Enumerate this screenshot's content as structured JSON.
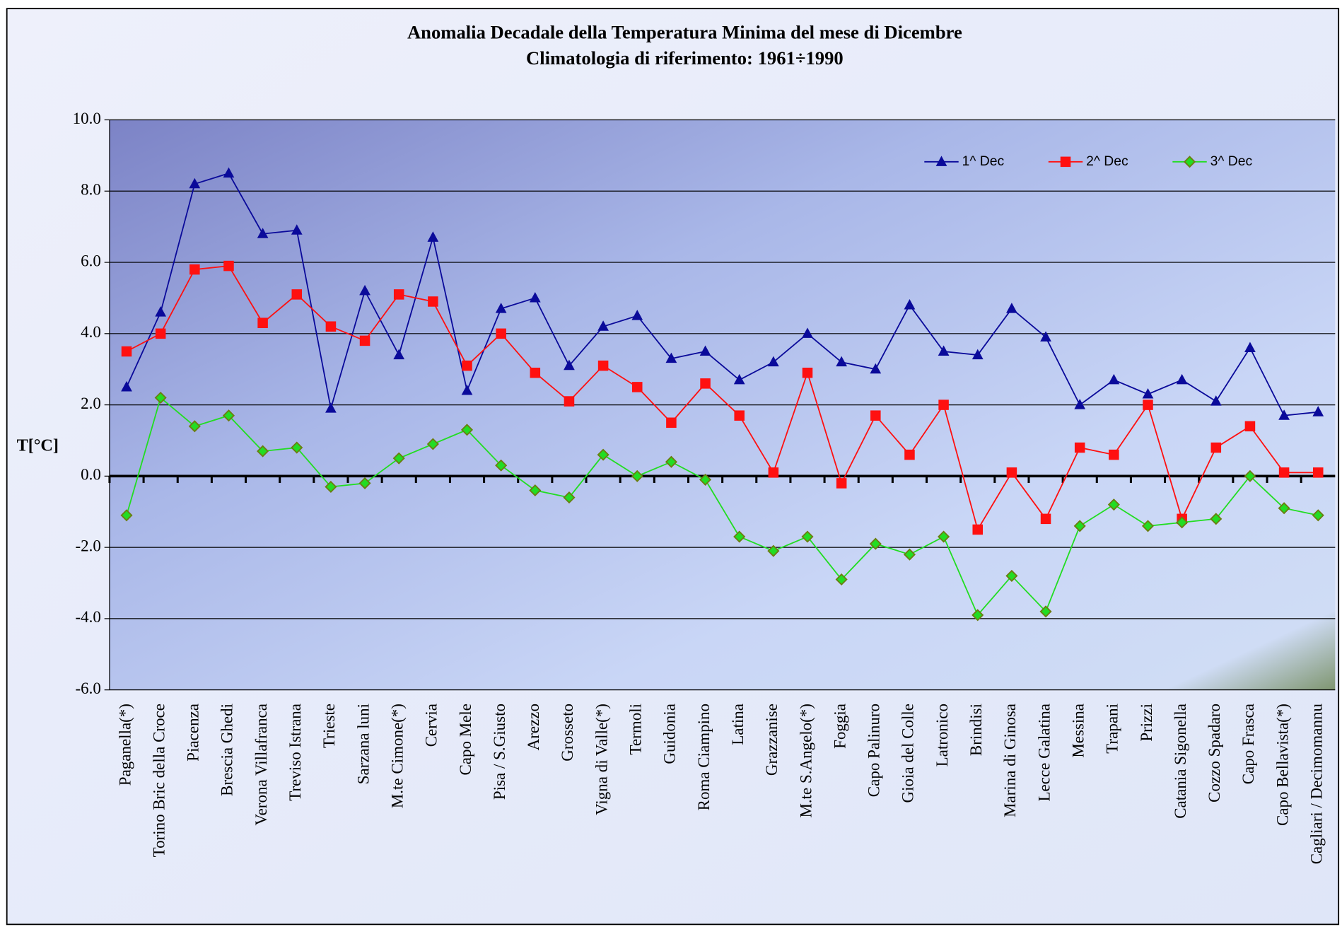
{
  "chart_data": {
    "type": "line",
    "title": "Anomalia Decadale della Temperatura Minima del mese di Dicembre",
    "subtitle": "Climatologia di riferimento: 1961÷1990",
    "y_label": "T[°C]",
    "categories": [
      "Paganella(*)",
      "Torino Bric della Croce",
      "Piacenza",
      "Brescia Ghedi",
      "Verona Villafranca",
      "Treviso Istrana",
      "Trieste",
      "Sarzana luni",
      "M.te Cimone(*)",
      "Cervia",
      "Capo Mele",
      "Pisa / S.Giusto",
      "Arezzo",
      "Grosseto",
      "Vigna di Valle(*)",
      "Termoli",
      "Guidonia",
      "Roma Ciampino",
      "Latina",
      "Grazzanise",
      "M.te S.Angelo(*)",
      "Foggia",
      "Capo Palinuro",
      "Gioia del Colle",
      "Latronico",
      "Brindisi",
      "Marina di Ginosa",
      "Lecce Galatina",
      "Messina",
      "Trapani",
      "Prizzi",
      "Catania Sigonella",
      "Cozzo Spadaro",
      "Capo Frasca",
      "Capo Bellavista(*)",
      "Cagliari / Decimomannu"
    ],
    "series": [
      {
        "name": "1^ Dec",
        "color": "#0a0a9a",
        "marker": "triangle",
        "values": [
          2.5,
          4.6,
          8.2,
          8.5,
          6.8,
          6.9,
          1.9,
          5.2,
          3.4,
          6.7,
          2.4,
          4.7,
          5.0,
          3.1,
          4.2,
          4.5,
          3.3,
          3.5,
          2.7,
          3.2,
          4.0,
          3.2,
          3.0,
          4.8,
          3.5,
          3.4,
          4.7,
          3.9,
          2.0,
          2.7,
          2.3,
          2.7,
          2.1,
          3.6,
          1.7,
          1.8
        ]
      },
      {
        "name": "2^ Dec",
        "color": "#ff1010",
        "marker": "square",
        "values": [
          3.5,
          4.0,
          5.8,
          5.9,
          4.3,
          5.1,
          4.2,
          3.8,
          5.1,
          4.9,
          3.1,
          4.0,
          2.9,
          2.1,
          3.1,
          2.5,
          1.5,
          2.6,
          1.7,
          0.1,
          2.9,
          -0.2,
          1.7,
          0.6,
          2.0,
          -1.5,
          0.1,
          -1.2,
          0.8,
          0.6,
          2.0,
          -1.2,
          0.8,
          1.4,
          0.1,
          0.1
        ]
      },
      {
        "name": "3^ Dec",
        "color": "#22dd22",
        "marker": "diamond",
        "values": [
          -1.1,
          2.2,
          1.4,
          1.7,
          0.7,
          0.8,
          -0.3,
          -0.2,
          0.5,
          0.9,
          1.3,
          0.3,
          -0.4,
          -0.6,
          0.6,
          0.0,
          0.4,
          -0.1,
          -1.7,
          -2.1,
          -1.7,
          -2.9,
          -1.9,
          -2.2,
          -1.7,
          -3.9,
          -2.8,
          -3.8,
          -1.4,
          -0.8,
          -1.4,
          -1.3,
          -1.2,
          0.0,
          -0.9,
          -1.1
        ]
      }
    ],
    "ylim": [
      -6,
      10
    ],
    "yticks": [
      {
        "value": -6,
        "label": "-6.0"
      },
      {
        "value": -4,
        "label": "-4.0"
      },
      {
        "value": -2,
        "label": "-2.0"
      },
      {
        "value": 0,
        "label": "0.0"
      },
      {
        "value": 2,
        "label": "2.0"
      },
      {
        "value": 4,
        "label": "4.0"
      },
      {
        "value": 6,
        "label": "6.0"
      },
      {
        "value": 8,
        "label": "8.0"
      },
      {
        "value": 10,
        "label": "10.0"
      }
    ],
    "grid": true,
    "legend": "top-right"
  }
}
